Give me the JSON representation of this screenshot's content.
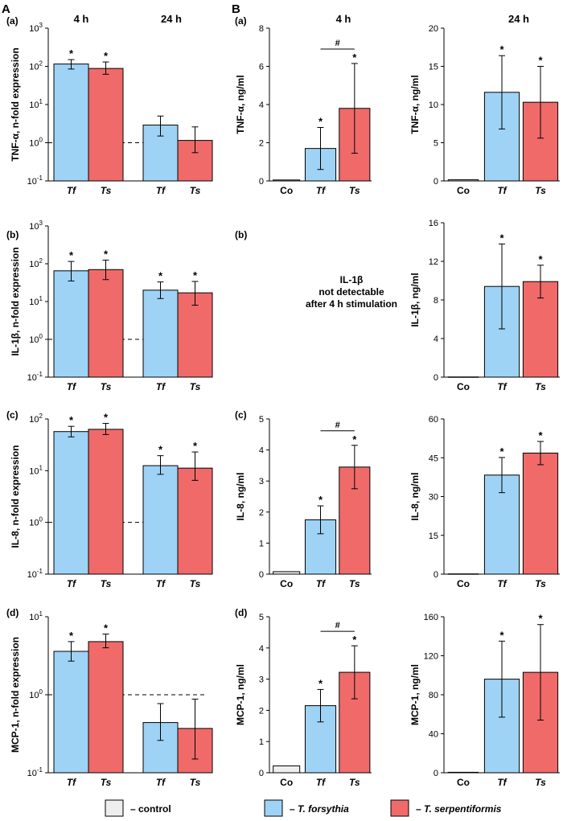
{
  "panels": {
    "A": "A",
    "B": "B"
  },
  "col_titles": {
    "h4_left": "4 h",
    "h24_left": "24 h",
    "h4_right": "4 h",
    "h24_right": "24 h"
  },
  "colors": {
    "control": "#eeeeee",
    "tf": "#9fd3f5",
    "ts": "#f06a6a",
    "axis": "#000000"
  },
  "labels": {
    "control": "Co",
    "tf": "Tf",
    "ts": "Ts",
    "sig": "*",
    "hash": "#"
  },
  "legend": {
    "control_text": "– control",
    "tf_prefix": "– ",
    "tf_name": "T. forsythia",
    "ts_prefix": "– ",
    "ts_name": "T. serpentiformis"
  },
  "note_il1b": [
    "IL-1β",
    "not detectable",
    "after 4 h stimulation"
  ],
  "chart_data": [
    {
      "id": "A_a",
      "row_label": "(a)",
      "type": "bar",
      "scale": "log",
      "ylabel": "TNF-α, n-fold expression",
      "ylim": [
        0.1,
        1000
      ],
      "ticks": [
        [
          "10",
          "-1"
        ],
        [
          "10",
          "0"
        ],
        [
          "10",
          "1"
        ],
        [
          "10",
          "2"
        ],
        [
          "10",
          "3"
        ]
      ],
      "tick_values": [
        0.1,
        1,
        10,
        100,
        1000
      ],
      "reference_line": 1,
      "groups": [
        "4 h",
        "24 h"
      ],
      "series": [
        {
          "name": "Tf",
          "values": [
            115,
            2.9
          ],
          "err_low": [
            85,
            1.5
          ],
          "err_high": [
            150,
            5.0
          ],
          "sig": [
            true,
            false
          ]
        },
        {
          "name": "Ts",
          "values": [
            88,
            1.15
          ],
          "err_low": [
            62,
            0.55
          ],
          "err_high": [
            130,
            2.6
          ],
          "sig": [
            true,
            false
          ]
        }
      ]
    },
    {
      "id": "A_b",
      "row_label": "(b)",
      "type": "bar",
      "scale": "log",
      "ylabel": "IL-1β, n-fold expression",
      "ylim": [
        0.1,
        1000
      ],
      "ticks": [
        [
          "10",
          "-1"
        ],
        [
          "10",
          "0"
        ],
        [
          "10",
          "1"
        ],
        [
          "10",
          "2"
        ],
        [
          "10",
          "3"
        ]
      ],
      "tick_values": [
        0.1,
        1,
        10,
        100,
        1000
      ],
      "reference_line": 1,
      "groups": [
        "4 h",
        "24 h"
      ],
      "series": [
        {
          "name": "Tf",
          "values": [
            65,
            20
          ],
          "err_low": [
            35,
            12
          ],
          "err_high": [
            115,
            33
          ],
          "sig": [
            true,
            true
          ]
        },
        {
          "name": "Ts",
          "values": [
            70,
            17
          ],
          "err_low": [
            38,
            8
          ],
          "err_high": [
            125,
            34
          ],
          "sig": [
            true,
            true
          ]
        }
      ]
    },
    {
      "id": "A_c",
      "row_label": "(c)",
      "type": "bar",
      "scale": "log",
      "ylabel": "IL-8, n-fold expression",
      "ylim": [
        0.1,
        100
      ],
      "ticks": [
        [
          "10",
          "-1"
        ],
        [
          "10",
          "0"
        ],
        [
          "10",
          "1"
        ],
        [
          "10",
          "2"
        ]
      ],
      "tick_values": [
        0.1,
        1,
        10,
        100
      ],
      "reference_line": 1,
      "groups": [
        "4 h",
        "24 h"
      ],
      "series": [
        {
          "name": "Tf",
          "values": [
            57,
            12.5
          ],
          "err_low": [
            45,
            8.5
          ],
          "err_high": [
            72,
            19.5
          ],
          "sig": [
            true,
            true
          ]
        },
        {
          "name": "Ts",
          "values": [
            63,
            11.2
          ],
          "err_low": [
            50,
            6.5
          ],
          "err_high": [
            82,
            23
          ],
          "sig": [
            true,
            true
          ]
        }
      ]
    },
    {
      "id": "A_d",
      "row_label": "(d)",
      "type": "bar",
      "scale": "log",
      "ylabel": "MCP-1, n-fold expression",
      "ylim": [
        0.1,
        10
      ],
      "ticks": [
        [
          "10",
          "-1"
        ],
        [
          "10",
          "0"
        ],
        [
          "10",
          "1"
        ]
      ],
      "tick_values": [
        0.1,
        1,
        10
      ],
      "reference_line": 1,
      "groups": [
        "4 h",
        "24 h"
      ],
      "series": [
        {
          "name": "Tf",
          "values": [
            3.6,
            0.44
          ],
          "err_low": [
            2.7,
            0.26
          ],
          "err_high": [
            4.8,
            0.77
          ],
          "sig": [
            true,
            false
          ]
        },
        {
          "name": "Ts",
          "values": [
            4.8,
            0.37
          ],
          "err_low": [
            4.0,
            0.15
          ],
          "err_high": [
            6.0,
            0.88
          ],
          "sig": [
            true,
            false
          ]
        }
      ]
    },
    {
      "id": "B_a_4h",
      "row_label": "(a)",
      "type": "bar",
      "scale": "linear",
      "ylabel": "TNF-α, ng/ml",
      "ylim": [
        0,
        8
      ],
      "ticks": [
        "0",
        "2",
        "4",
        "6",
        "8"
      ],
      "tick_values": [
        0,
        2,
        4,
        6,
        8
      ],
      "categories": [
        "Co",
        "Tf",
        "Ts"
      ],
      "values": [
        0.05,
        1.7,
        3.8
      ],
      "errors": [
        0.02,
        1.1,
        2.35
      ],
      "sig": [
        false,
        true,
        true
      ],
      "bracket": "#"
    },
    {
      "id": "B_a_24h",
      "type": "bar",
      "scale": "linear",
      "ylabel": "TNF-α, ng/ml",
      "ylim": [
        0,
        20
      ],
      "ticks": [
        "0",
        "5",
        "10",
        "15",
        "20"
      ],
      "tick_values": [
        0,
        5,
        10,
        15,
        20
      ],
      "categories": [
        "Co",
        "Tf",
        "Ts"
      ],
      "values": [
        0.15,
        11.6,
        10.3
      ],
      "errors": [
        0.05,
        4.8,
        4.7
      ],
      "sig": [
        false,
        true,
        true
      ]
    },
    {
      "id": "B_b_24h",
      "row_label": "(b)",
      "type": "bar",
      "scale": "linear",
      "ylabel": "IL-1β, ng/ml",
      "ylim": [
        0,
        16
      ],
      "ticks": [
        "0",
        "4",
        "8",
        "12",
        "16"
      ],
      "tick_values": [
        0,
        4,
        8,
        12,
        16
      ],
      "categories": [
        "Co",
        "Tf",
        "Ts"
      ],
      "values": [
        0.02,
        9.4,
        9.9
      ],
      "errors": [
        0.01,
        4.4,
        1.7
      ],
      "sig": [
        false,
        true,
        true
      ]
    },
    {
      "id": "B_c_4h",
      "row_label": "(c)",
      "type": "bar",
      "scale": "linear",
      "ylabel": "IL-8, ng/ml",
      "ylim": [
        0,
        5
      ],
      "ticks": [
        "0",
        "1",
        "2",
        "3",
        "4",
        "5"
      ],
      "tick_values": [
        0,
        1,
        2,
        3,
        4,
        5
      ],
      "categories": [
        "Co",
        "Tf",
        "Ts"
      ],
      "values": [
        0.08,
        1.75,
        3.45
      ],
      "errors": [
        0.02,
        0.45,
        0.7
      ],
      "sig": [
        false,
        true,
        true
      ],
      "bracket": "#"
    },
    {
      "id": "B_c_24h",
      "type": "bar",
      "scale": "linear",
      "ylabel": "IL-8, ng/ml",
      "ylim": [
        0,
        60
      ],
      "ticks": [
        "0",
        "15",
        "30",
        "45",
        "60"
      ],
      "tick_values": [
        0,
        15,
        30,
        45,
        60
      ],
      "categories": [
        "Co",
        "Tf",
        "Ts"
      ],
      "values": [
        0.1,
        38.3,
        46.8
      ],
      "errors": [
        0.05,
        6.8,
        4.5
      ],
      "sig": [
        false,
        true,
        true
      ]
    },
    {
      "id": "B_d_4h",
      "row_label": "(d)",
      "type": "bar",
      "scale": "linear",
      "ylabel": "MCP-1, ng/ml",
      "ylim": [
        0,
        5
      ],
      "ticks": [
        "0",
        "1",
        "2",
        "3",
        "4",
        "5"
      ],
      "tick_values": [
        0,
        1,
        2,
        3,
        4,
        5
      ],
      "categories": [
        "Co",
        "Tf",
        "Ts"
      ],
      "values": [
        0.22,
        2.15,
        3.22
      ],
      "errors": [
        0.03,
        0.52,
        0.85
      ],
      "sig": [
        false,
        true,
        true
      ],
      "bracket": "#"
    },
    {
      "id": "B_d_24h",
      "type": "bar",
      "scale": "linear",
      "ylabel": "MCP-1, ng/ml",
      "ylim": [
        0,
        160
      ],
      "ticks": [
        "0",
        "40",
        "80",
        "120",
        "160"
      ],
      "tick_values": [
        0,
        40,
        80,
        120,
        160
      ],
      "categories": [
        "Co",
        "Tf",
        "Ts"
      ],
      "values": [
        0.5,
        96,
        103
      ],
      "errors": [
        0.2,
        39,
        49
      ],
      "sig": [
        false,
        true,
        true
      ]
    }
  ]
}
